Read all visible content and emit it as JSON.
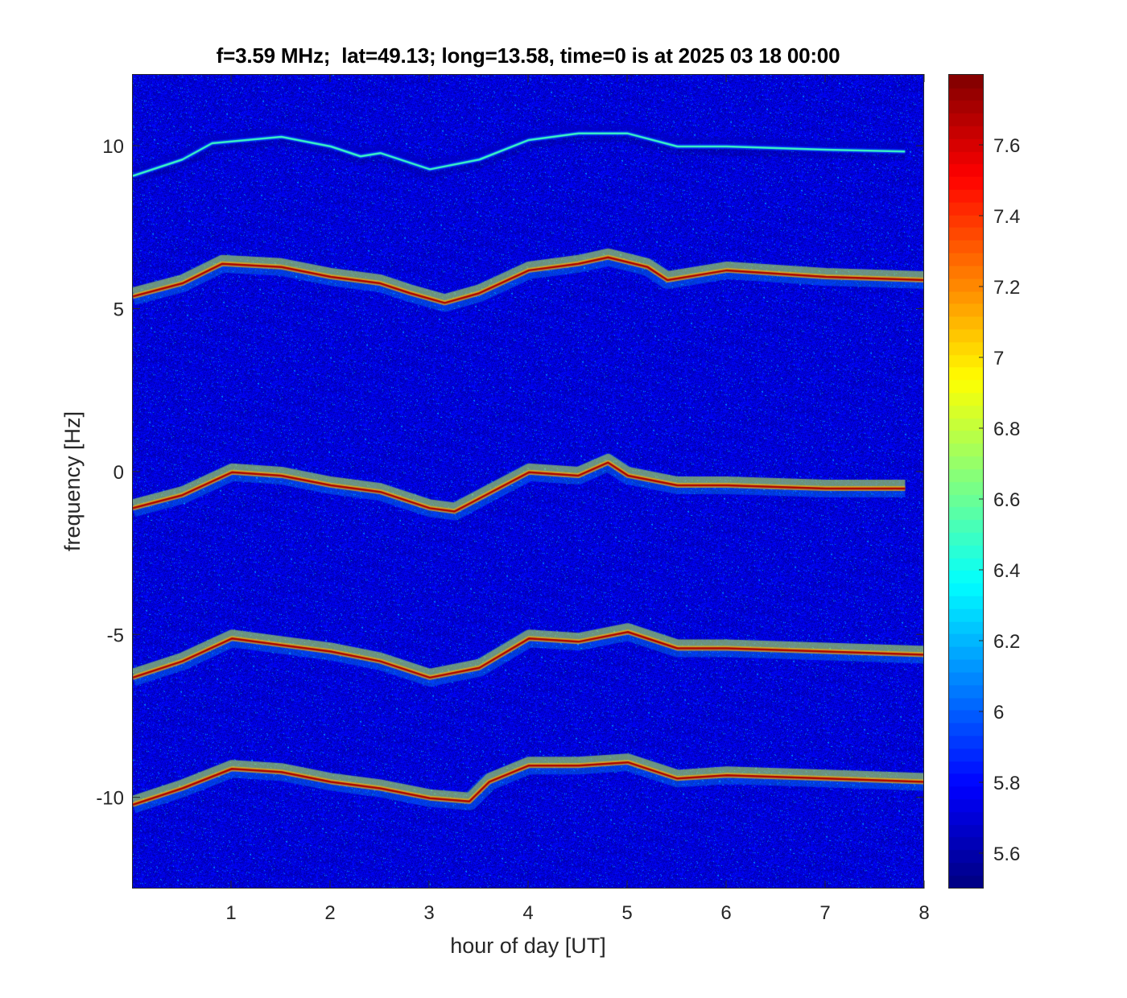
{
  "chart_data": {
    "type": "heatmap",
    "title": "f=3.59 MHz;  lat=49.13; long=13.58, time=0 is at 2025 03 18 00:00",
    "xlabel": "hour of day [UT]",
    "ylabel": "frequency [Hz]",
    "xlim": [
      0,
      8
    ],
    "ylim": [
      -12.8,
      12.2
    ],
    "x_ticks": [
      1,
      2,
      3,
      4,
      5,
      6,
      7,
      8
    ],
    "y_ticks": [
      -10,
      -5,
      0,
      5,
      10
    ],
    "colormap": "jet",
    "color_range": [
      5.5,
      7.8
    ],
    "colorbar_ticks": [
      5.6,
      5.8,
      6,
      6.2,
      6.4,
      6.6,
      6.8,
      7,
      7.2,
      7.4,
      7.6
    ],
    "background_level": 5.7,
    "traces": [
      {
        "label_level": 7.7,
        "points": [
          [
            0,
            -1.1
          ],
          [
            0.5,
            -0.7
          ],
          [
            1.0,
            0.0
          ],
          [
            1.5,
            -0.1
          ],
          [
            2.0,
            -0.4
          ],
          [
            2.5,
            -0.6
          ],
          [
            3.0,
            -1.1
          ],
          [
            3.25,
            -1.2
          ],
          [
            3.5,
            -0.8
          ],
          [
            4.0,
            0.0
          ],
          [
            4.5,
            -0.1
          ],
          [
            4.8,
            0.3
          ],
          [
            5.0,
            -0.1
          ],
          [
            5.5,
            -0.4
          ],
          [
            6.0,
            -0.4
          ],
          [
            7.0,
            -0.5
          ],
          [
            7.8,
            -0.5
          ]
        ]
      },
      {
        "label_level": 7.7,
        "points": [
          [
            0,
            5.4
          ],
          [
            0.5,
            5.8
          ],
          [
            0.9,
            6.4
          ],
          [
            1.5,
            6.3
          ],
          [
            2.0,
            6.0
          ],
          [
            2.5,
            5.8
          ],
          [
            2.8,
            5.5
          ],
          [
            3.15,
            5.2
          ],
          [
            3.5,
            5.5
          ],
          [
            4.0,
            6.2
          ],
          [
            4.5,
            6.4
          ],
          [
            4.8,
            6.6
          ],
          [
            5.2,
            6.3
          ],
          [
            5.4,
            5.9
          ],
          [
            6.0,
            6.2
          ],
          [
            7.0,
            6.0
          ],
          [
            8.0,
            5.9
          ]
        ]
      },
      {
        "label_level": 7.7,
        "points": [
          [
            0,
            -6.3
          ],
          [
            0.5,
            -5.8
          ],
          [
            1.0,
            -5.1
          ],
          [
            1.5,
            -5.3
          ],
          [
            2.0,
            -5.5
          ],
          [
            2.5,
            -5.8
          ],
          [
            3.0,
            -6.3
          ],
          [
            3.5,
            -6.0
          ],
          [
            4.0,
            -5.1
          ],
          [
            4.5,
            -5.2
          ],
          [
            5.0,
            -4.9
          ],
          [
            5.5,
            -5.4
          ],
          [
            6.0,
            -5.4
          ],
          [
            7.0,
            -5.5
          ],
          [
            8.0,
            -5.6
          ]
        ]
      },
      {
        "label_level": 7.7,
        "points": [
          [
            0,
            -10.2
          ],
          [
            0.5,
            -9.7
          ],
          [
            1.0,
            -9.1
          ],
          [
            1.5,
            -9.2
          ],
          [
            2.0,
            -9.5
          ],
          [
            2.5,
            -9.7
          ],
          [
            3.0,
            -10.0
          ],
          [
            3.4,
            -10.1
          ],
          [
            3.6,
            -9.5
          ],
          [
            4.0,
            -9.0
          ],
          [
            4.5,
            -9.0
          ],
          [
            5.0,
            -8.9
          ],
          [
            5.5,
            -9.4
          ],
          [
            6.0,
            -9.3
          ],
          [
            7.0,
            -9.4
          ],
          [
            8.0,
            -9.5
          ]
        ]
      },
      {
        "label_level": 6.5,
        "points": [
          [
            0,
            9.1
          ],
          [
            0.5,
            9.6
          ],
          [
            0.8,
            10.1
          ],
          [
            1.5,
            10.3
          ],
          [
            2.0,
            10.0
          ],
          [
            2.3,
            9.7
          ],
          [
            2.5,
            9.8
          ],
          [
            3.0,
            9.3
          ],
          [
            3.5,
            9.6
          ],
          [
            4.0,
            10.2
          ],
          [
            4.5,
            10.4
          ],
          [
            5.0,
            10.4
          ],
          [
            5.5,
            10.0
          ],
          [
            6.0,
            10.0
          ],
          [
            7.0,
            9.9
          ],
          [
            7.8,
            9.85
          ]
        ]
      }
    ]
  }
}
